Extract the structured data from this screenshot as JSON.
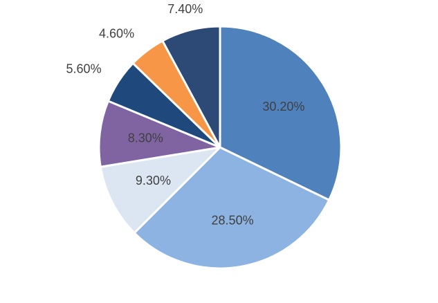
{
  "chart_data": {
    "type": "pie",
    "title": "",
    "start_angle_deg": 0,
    "direction": "clockwise",
    "legend": "none",
    "slices": [
      {
        "value": 30.2,
        "label": "30.20%",
        "color": "#4f81bd",
        "label_position": "inside"
      },
      {
        "value": 28.5,
        "label": "28.50%",
        "color": "#8db3e2",
        "label_position": "inside"
      },
      {
        "value": 9.3,
        "label": "9.30%",
        "color": "#dce6f2",
        "label_position": "inside"
      },
      {
        "value": 8.3,
        "label": "8.30%",
        "color": "#8064a2",
        "label_position": "inside"
      },
      {
        "value": 5.6,
        "label": "5.60%",
        "color": "#1f497d",
        "label_position": "outside"
      },
      {
        "value": 4.6,
        "label": "4.60%",
        "color": "#f79646",
        "label_position": "outside"
      },
      {
        "value": 7.4,
        "label": "7.40%",
        "color": "#2c4a75",
        "label_position": "outside"
      }
    ]
  }
}
